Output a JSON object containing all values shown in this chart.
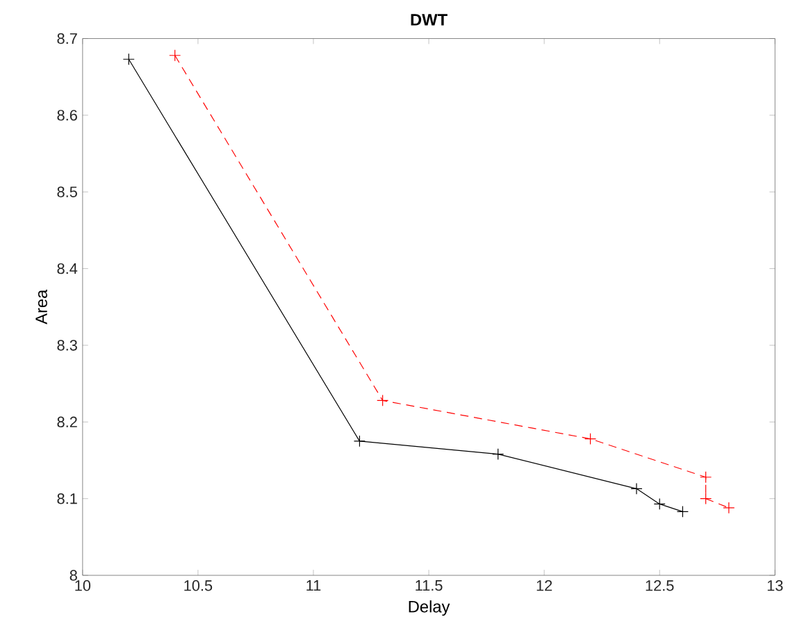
{
  "chart_data": {
    "type": "line",
    "title": "DWT",
    "xlabel": "Delay",
    "ylabel": "Area",
    "xlim": [
      10,
      13
    ],
    "xticks": [
      10,
      10.5,
      11,
      11.5,
      12,
      12.5,
      13
    ],
    "ylim": [
      8,
      8.7
    ],
    "yticks": [
      8,
      8.1,
      8.2,
      8.3,
      8.4,
      8.5,
      8.6,
      8.7
    ],
    "marker": "cross",
    "series": [
      {
        "color": "#000000",
        "line_style": "solid",
        "x": [
          10.2,
          11.2,
          11.8,
          12.4,
          12.5,
          12.6
        ],
        "values": [
          8.673,
          8.175,
          8.158,
          8.113,
          8.093,
          8.083
        ]
      },
      {
        "color": "#ff0000",
        "line_style": "dashed",
        "x": [
          10.4,
          11.3,
          12.2,
          12.7,
          12.7,
          12.8
        ],
        "values": [
          8.678,
          8.228,
          8.178,
          8.128,
          8.1,
          8.088
        ]
      }
    ]
  }
}
